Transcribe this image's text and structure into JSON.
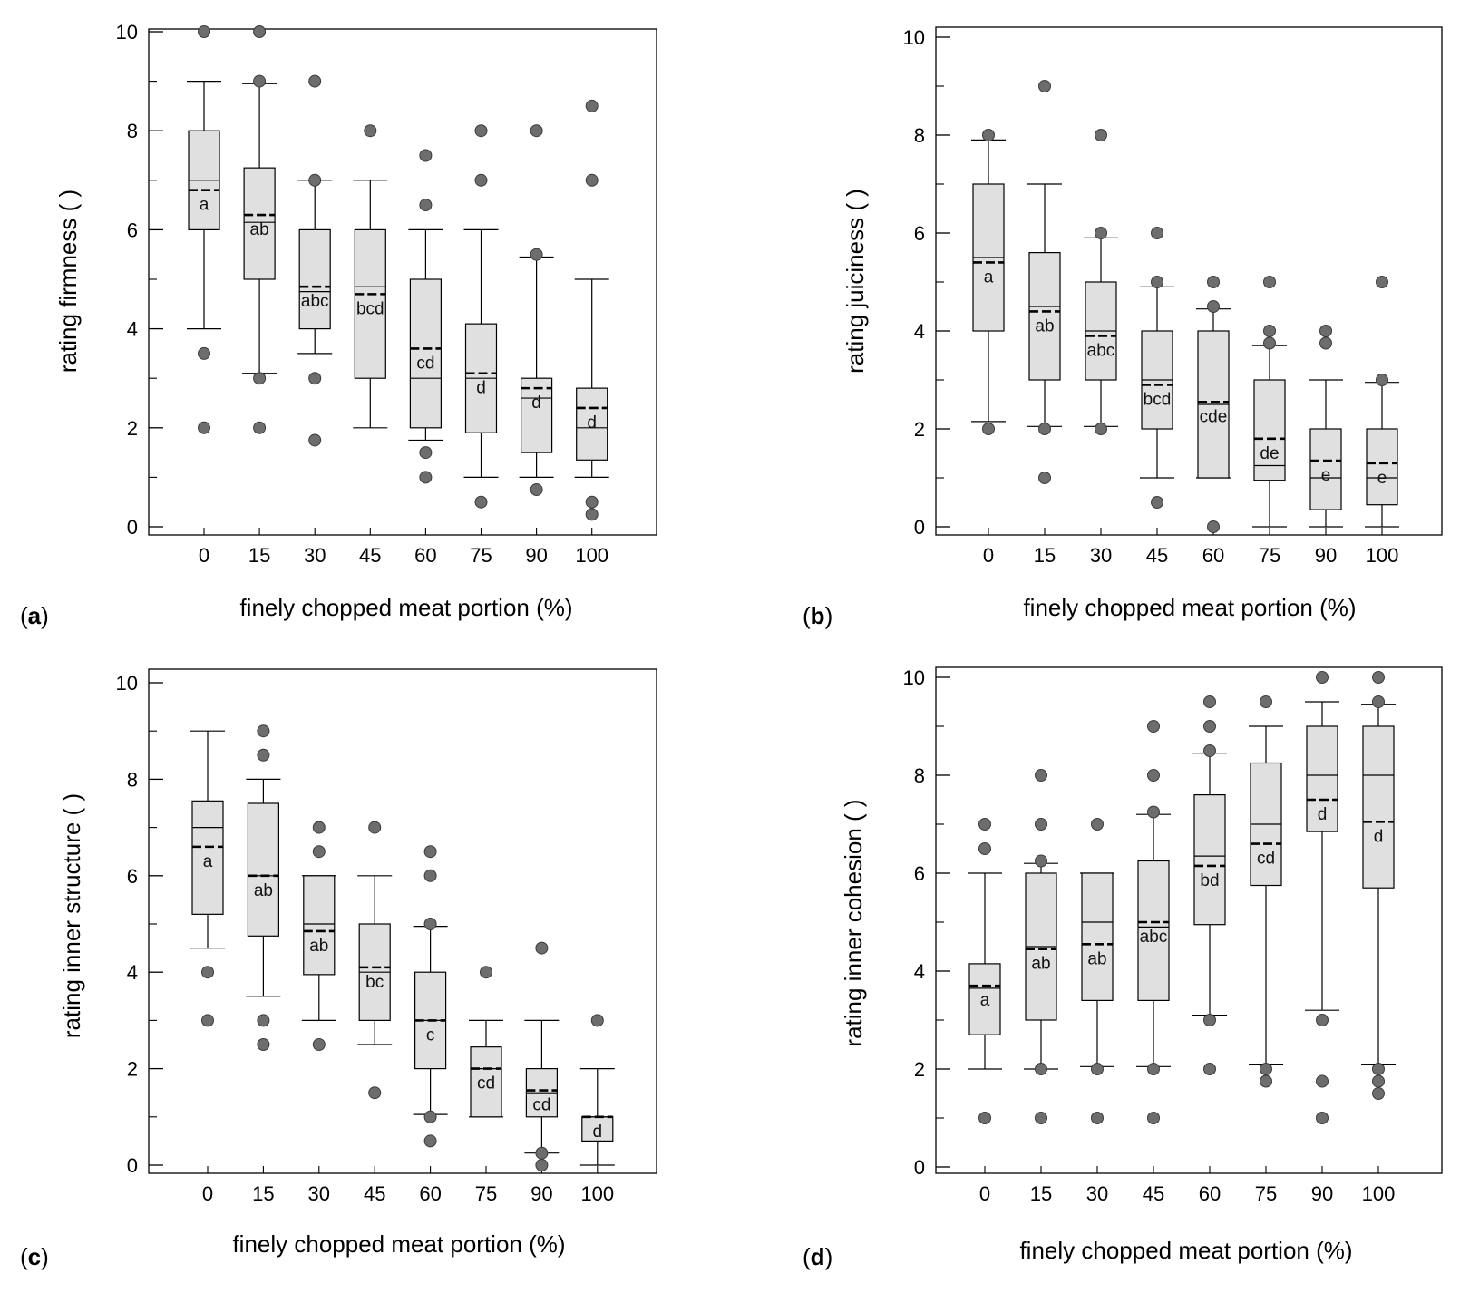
{
  "figure": {
    "panels": [
      {
        "panel_label": "a",
        "chart_data": {
          "type": "box",
          "title": "",
          "xlabel": "finely chopped meat portion (%)",
          "ylabel": "rating firmness ( )",
          "ylim": [
            0,
            10
          ],
          "yticks": [
            0,
            2,
            4,
            6,
            8,
            10
          ],
          "categories": [
            "0",
            "15",
            "30",
            "45",
            "60",
            "75",
            "90",
            "100"
          ],
          "boxes": [
            {
              "category": "0",
              "q1": 6.0,
              "median": 7.0,
              "q3": 8.0,
              "mean": 6.8,
              "whisker_low": 4.0,
              "whisker_high": 9.0,
              "outliers": [
                2,
                3.5,
                10
              ],
              "letter": "a"
            },
            {
              "category": "15",
              "q1": 5.0,
              "median": 6.15,
              "q3": 7.25,
              "mean": 6.3,
              "whisker_low": 3.1,
              "whisker_high": 8.95,
              "outliers": [
                2,
                3,
                9,
                10
              ],
              "letter": "ab"
            },
            {
              "category": "30",
              "q1": 4.0,
              "median": 4.75,
              "q3": 6.0,
              "mean": 4.85,
              "whisker_low": 3.5,
              "whisker_high": 7.0,
              "outliers": [
                1.75,
                3,
                7,
                9
              ],
              "letter": "abc"
            },
            {
              "category": "45",
              "q1": 3.0,
              "median": 4.85,
              "q3": 6.0,
              "mean": 4.7,
              "whisker_low": 2.0,
              "whisker_high": 7.0,
              "outliers": [
                8
              ],
              "letter": "bcd"
            },
            {
              "category": "60",
              "q1": 2.0,
              "median": 3.0,
              "q3": 5.0,
              "mean": 3.6,
              "whisker_low": 1.75,
              "whisker_high": 6.0,
              "outliers": [
                1,
                1.5,
                6.5,
                7.5
              ],
              "letter": "cd"
            },
            {
              "category": "75",
              "q1": 1.9,
              "median": 3.0,
              "q3": 4.1,
              "mean": 3.1,
              "whisker_low": 1.0,
              "whisker_high": 6.0,
              "outliers": [
                0.5,
                7,
                8
              ],
              "letter": "d"
            },
            {
              "category": "90",
              "q1": 1.5,
              "median": 2.6,
              "q3": 3.0,
              "mean": 2.8,
              "whisker_low": 1.0,
              "whisker_high": 5.45,
              "outliers": [
                0.75,
                5.5,
                8
              ],
              "letter": "d"
            },
            {
              "category": "100",
              "q1": 1.35,
              "median": 2.0,
              "q3": 2.8,
              "mean": 2.4,
              "whisker_low": 1.0,
              "whisker_high": 5.0,
              "outliers": [
                0.25,
                0.5,
                7,
                8.5
              ],
              "letter": "d"
            }
          ]
        }
      },
      {
        "panel_label": "b",
        "chart_data": {
          "type": "box",
          "title": "",
          "xlabel": "finely chopped meat portion (%)",
          "ylabel": "rating juiciness ( )",
          "ylim": [
            0,
            10
          ],
          "yticks": [
            0,
            2,
            4,
            6,
            8,
            10
          ],
          "categories": [
            "0",
            "15",
            "30",
            "45",
            "60",
            "75",
            "90",
            "100"
          ],
          "boxes": [
            {
              "category": "0",
              "q1": 4.0,
              "median": 5.5,
              "q3": 7.0,
              "mean": 5.4,
              "whisker_low": 2.15,
              "whisker_high": 7.9,
              "outliers": [
                2,
                8
              ],
              "letter": "a"
            },
            {
              "category": "15",
              "q1": 3.0,
              "median": 4.5,
              "q3": 5.6,
              "mean": 4.4,
              "whisker_low": 2.05,
              "whisker_high": 7.0,
              "outliers": [
                1,
                2,
                9
              ],
              "letter": "ab"
            },
            {
              "category": "30",
              "q1": 3.0,
              "median": 4.0,
              "q3": 5.0,
              "mean": 3.9,
              "whisker_low": 2.05,
              "whisker_high": 5.9,
              "outliers": [
                2,
                6,
                8
              ],
              "letter": "abc"
            },
            {
              "category": "45",
              "q1": 2.0,
              "median": 3.0,
              "q3": 4.0,
              "mean": 2.9,
              "whisker_low": 1.0,
              "whisker_high": 4.9,
              "outliers": [
                0.5,
                5,
                6
              ],
              "letter": "bcd"
            },
            {
              "category": "60",
              "q1": 1.0,
              "median": 2.5,
              "q3": 4.0,
              "mean": 2.55,
              "whisker_low": 1.0,
              "whisker_high": 4.45,
              "outliers": [
                0,
                4.5,
                5
              ],
              "letter": "cde"
            },
            {
              "category": "75",
              "q1": 0.95,
              "median": 1.25,
              "q3": 3.0,
              "mean": 1.8,
              "whisker_low": 0.0,
              "whisker_high": 3.7,
              "outliers": [
                3.75,
                4,
                5
              ],
              "letter": "de"
            },
            {
              "category": "90",
              "q1": 0.35,
              "median": 1.0,
              "q3": 2.0,
              "mean": 1.35,
              "whisker_low": 0.0,
              "whisker_high": 3.0,
              "outliers": [
                3.75,
                4
              ],
              "letter": "e"
            },
            {
              "category": "100",
              "q1": 0.45,
              "median": 1.0,
              "q3": 2.0,
              "mean": 1.3,
              "whisker_low": 0.0,
              "whisker_high": 2.95,
              "outliers": [
                3,
                5
              ],
              "letter": "e"
            }
          ]
        }
      },
      {
        "panel_label": "c",
        "chart_data": {
          "type": "box",
          "title": "",
          "xlabel": "finely chopped meat portion (%)",
          "ylabel": "rating inner structure ( )",
          "ylim": [
            0,
            10
          ],
          "yticks": [
            0,
            2,
            4,
            6,
            8,
            10
          ],
          "categories": [
            "0",
            "15",
            "30",
            "45",
            "60",
            "75",
            "90",
            "100"
          ],
          "boxes": [
            {
              "category": "0",
              "q1": 5.2,
              "median": 7.0,
              "q3": 7.55,
              "mean": 6.6,
              "whisker_low": 4.5,
              "whisker_high": 9.0,
              "outliers": [
                3,
                4
              ],
              "letter": "a"
            },
            {
              "category": "15",
              "q1": 4.75,
              "median": 6.0,
              "q3": 7.5,
              "mean": 6.0,
              "whisker_low": 3.5,
              "whisker_high": 8.0,
              "outliers": [
                2.5,
                3,
                8.5,
                9
              ],
              "letter": "ab"
            },
            {
              "category": "30",
              "q1": 3.95,
              "median": 5.0,
              "q3": 6.0,
              "mean": 4.85,
              "whisker_low": 3.0,
              "whisker_high": 6.0,
              "outliers": [
                2.5,
                6.5,
                7
              ],
              "letter": "ab"
            },
            {
              "category": "45",
              "q1": 3.0,
              "median": 4.0,
              "q3": 5.0,
              "mean": 4.1,
              "whisker_low": 2.5,
              "whisker_high": 6.0,
              "outliers": [
                1.5,
                7
              ],
              "letter": "bc"
            },
            {
              "category": "60",
              "q1": 2.0,
              "median": 3.0,
              "q3": 4.0,
              "mean": 3.0,
              "whisker_low": 1.05,
              "whisker_high": 4.95,
              "outliers": [
                0.5,
                1,
                5,
                6,
                6.5
              ],
              "letter": "c"
            },
            {
              "category": "75",
              "q1": 1.0,
              "median": 2.0,
              "q3": 2.45,
              "mean": 2.0,
              "whisker_low": 1.0,
              "whisker_high": 3.0,
              "outliers": [
                4
              ],
              "letter": "cd"
            },
            {
              "category": "90",
              "q1": 1.0,
              "median": 1.5,
              "q3": 2.0,
              "mean": 1.55,
              "whisker_low": 0.25,
              "whisker_high": 3.0,
              "outliers": [
                0,
                0.25,
                4.5
              ],
              "letter": "cd"
            },
            {
              "category": "100",
              "q1": 0.5,
              "median": 1.0,
              "q3": 1.0,
              "mean": 1.0,
              "whisker_low": 0.0,
              "whisker_high": 2.0,
              "outliers": [
                3
              ],
              "letter": "d"
            }
          ]
        }
      },
      {
        "panel_label": "d",
        "chart_data": {
          "type": "box",
          "title": "",
          "xlabel": "finely chopped meat portion (%)",
          "ylabel": "rating inner cohesion ( )",
          "ylim": [
            0,
            10
          ],
          "yticks": [
            0,
            2,
            4,
            6,
            8,
            10
          ],
          "categories": [
            "0",
            "15",
            "30",
            "45",
            "60",
            "75",
            "90",
            "100"
          ],
          "boxes": [
            {
              "category": "0",
              "q1": 2.7,
              "median": 3.65,
              "q3": 4.15,
              "mean": 3.7,
              "whisker_low": 2.0,
              "whisker_high": 6.0,
              "outliers": [
                1,
                6.5,
                7
              ],
              "letter": "a"
            },
            {
              "category": "15",
              "q1": 3.0,
              "median": 4.5,
              "q3": 6.0,
              "mean": 4.45,
              "whisker_low": 2.0,
              "whisker_high": 6.2,
              "outliers": [
                1,
                2,
                6.25,
                7,
                8
              ],
              "letter": "ab"
            },
            {
              "category": "30",
              "q1": 3.4,
              "median": 5.0,
              "q3": 6.0,
              "mean": 4.55,
              "whisker_low": 2.05,
              "whisker_high": 6.0,
              "outliers": [
                1,
                2,
                7
              ],
              "letter": "ab"
            },
            {
              "category": "45",
              "q1": 3.4,
              "median": 4.9,
              "q3": 6.25,
              "mean": 5.0,
              "whisker_low": 2.05,
              "whisker_high": 7.2,
              "outliers": [
                1,
                2,
                7.25,
                8,
                9
              ],
              "letter": "abc"
            },
            {
              "category": "60",
              "q1": 4.95,
              "median": 6.35,
              "q3": 7.6,
              "mean": 6.15,
              "whisker_low": 3.1,
              "whisker_high": 8.45,
              "outliers": [
                2,
                3,
                8.5,
                9,
                9.5
              ],
              "letter": "bd"
            },
            {
              "category": "75",
              "q1": 5.75,
              "median": 7.0,
              "q3": 8.25,
              "mean": 6.6,
              "whisker_low": 2.1,
              "whisker_high": 9.0,
              "outliers": [
                1.75,
                2,
                9.5
              ],
              "letter": "cd"
            },
            {
              "category": "90",
              "q1": 6.85,
              "median": 8.0,
              "q3": 9.0,
              "mean": 7.5,
              "whisker_low": 3.2,
              "whisker_high": 9.5,
              "outliers": [
                1,
                1.75,
                3,
                10
              ],
              "letter": "d"
            },
            {
              "category": "100",
              "q1": 5.7,
              "median": 8.0,
              "q3": 9.0,
              "mean": 7.05,
              "whisker_low": 2.1,
              "whisker_high": 9.45,
              "outliers": [
                1.5,
                1.75,
                2,
                9.5,
                10
              ],
              "letter": "d"
            }
          ]
        }
      }
    ]
  }
}
